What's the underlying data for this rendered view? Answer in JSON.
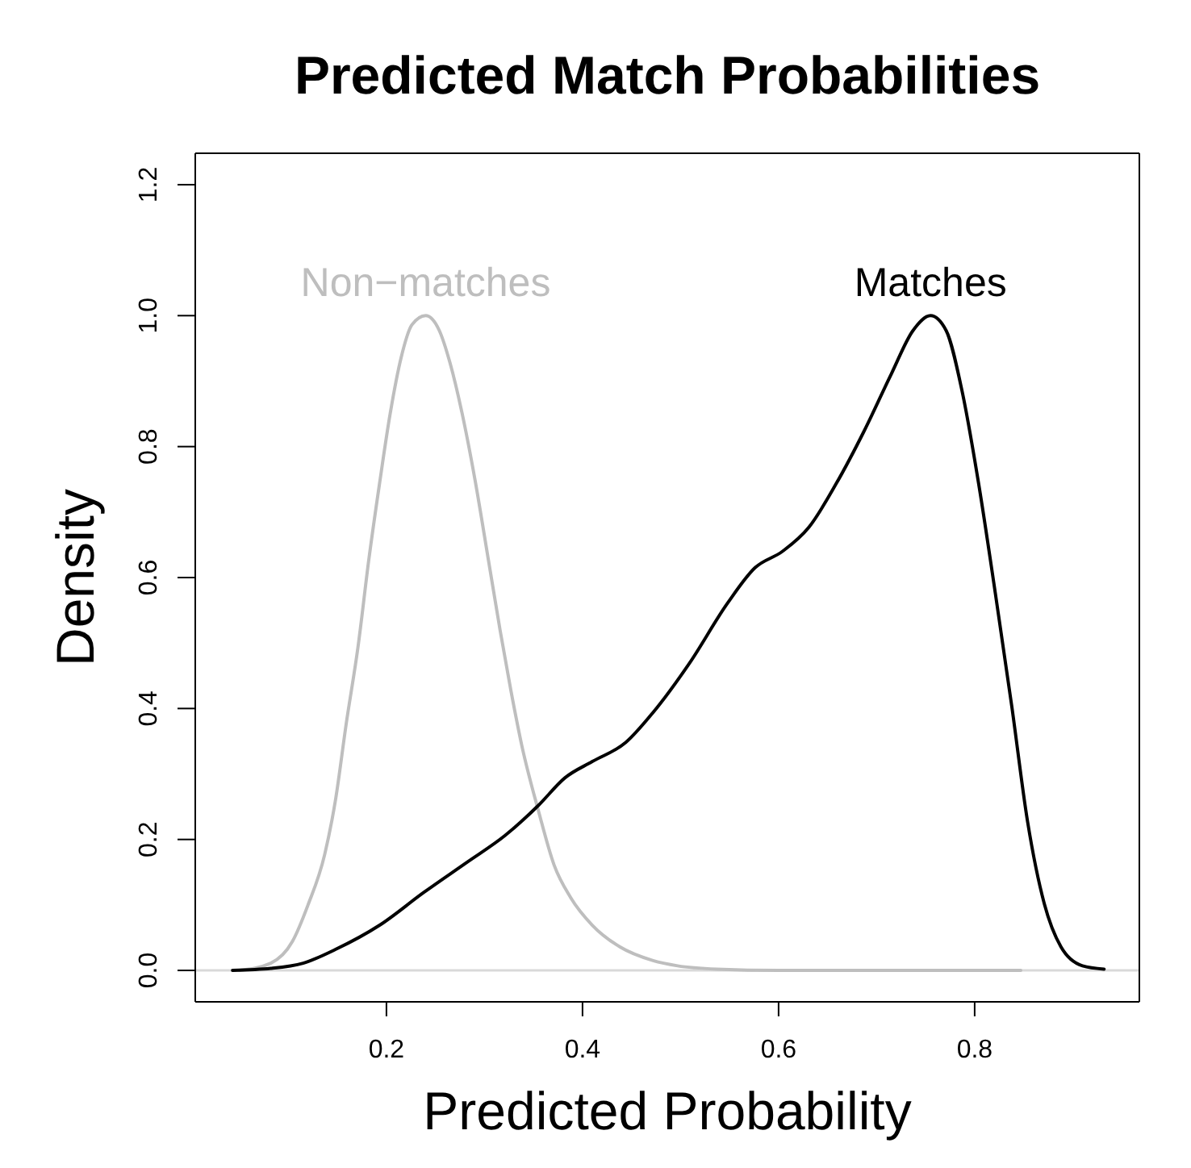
{
  "chart_data": {
    "type": "line",
    "title": "Predicted Match Probabilities",
    "xlabel": "Predicted Probability",
    "ylabel": "Density",
    "xlim": [
      0.005,
      0.968
    ],
    "xticks": [
      0.2,
      0.4,
      0.6,
      0.8
    ],
    "ylim": [
      -0.048,
      1.248
    ],
    "yticks": [
      {
        "value": 0,
        "label": "0.0"
      },
      0.2,
      0.4,
      0.6,
      0.8,
      {
        "value": 1,
        "label": "1.0"
      },
      1.2
    ],
    "marker": "none",
    "line_style": "solid",
    "ref_lines": [
      {
        "axis": "y",
        "value": 0,
        "color": "#d9d9d9"
      }
    ],
    "series": [
      {
        "name": "Non−matches",
        "color": "#bebebe",
        "x": [
          0.05,
          0.082,
          0.104,
          0.12,
          0.137,
          0.148,
          0.159,
          0.171,
          0.182,
          0.193,
          0.204,
          0.215,
          0.226,
          0.24,
          0.254,
          0.265,
          0.277,
          0.29,
          0.304,
          0.316,
          0.327,
          0.338,
          0.355,
          0.371,
          0.388,
          0.41,
          0.438,
          0.472,
          0.497,
          0.537,
          0.6,
          0.7,
          0.847
        ],
        "values": [
          0,
          0.011,
          0.044,
          0.1,
          0.177,
          0.26,
          0.377,
          0.494,
          0.627,
          0.744,
          0.852,
          0.936,
          0.986,
          1,
          0.977,
          0.927,
          0.852,
          0.752,
          0.627,
          0.519,
          0.427,
          0.344,
          0.244,
          0.161,
          0.111,
          0.069,
          0.036,
          0.015,
          0.007,
          0.002,
          0,
          0,
          0
        ]
      },
      {
        "name": "Matches",
        "color": "#000000",
        "x": [
          0.043,
          0.082,
          0.115,
          0.148,
          0.193,
          0.238,
          0.282,
          0.321,
          0.355,
          0.382,
          0.41,
          0.444,
          0.472,
          0.509,
          0.548,
          0.576,
          0.604,
          0.631,
          0.659,
          0.687,
          0.715,
          0.737,
          0.755,
          0.771,
          0.787,
          0.804,
          0.821,
          0.838,
          0.854,
          0.871,
          0.888,
          0.91,
          0.932
        ],
        "values": [
          0,
          0.003,
          0.011,
          0.032,
          0.069,
          0.119,
          0.165,
          0.206,
          0.252,
          0.294,
          0.319,
          0.348,
          0.394,
          0.469,
          0.561,
          0.615,
          0.64,
          0.677,
          0.744,
          0.823,
          0.911,
          0.977,
          1,
          0.977,
          0.886,
          0.744,
          0.577,
          0.402,
          0.227,
          0.102,
          0.036,
          0.007,
          0.002
        ]
      }
    ]
  }
}
